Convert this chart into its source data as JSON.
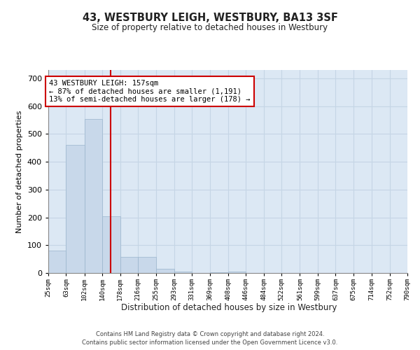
{
  "title": "43, WESTBURY LEIGH, WESTBURY, BA13 3SF",
  "subtitle": "Size of property relative to detached houses in Westbury",
  "xlabel": "Distribution of detached houses by size in Westbury",
  "ylabel": "Number of detached properties",
  "bar_color": "#c8d8ea",
  "bar_edgecolor": "#9ab5cc",
  "grid_color": "#c5d5e5",
  "background_color": "#dce8f4",
  "vline_color": "#cc0000",
  "vline_x": 157,
  "annotation_text": "43 WESTBURY LEIGH: 157sqm\n← 87% of detached houses are smaller (1,191)\n13% of semi-detached houses are larger (178) →",
  "annotation_box_facecolor": "#ffffff",
  "annotation_box_edgecolor": "#cc0000",
  "bin_edges": [
    25,
    63,
    102,
    140,
    178,
    216,
    255,
    293,
    331,
    369,
    408,
    446,
    484,
    522,
    561,
    599,
    637,
    675,
    714,
    752,
    790
  ],
  "bin_labels": [
    "25sqm",
    "63sqm",
    "102sqm",
    "140sqm",
    "178sqm",
    "216sqm",
    "255sqm",
    "293sqm",
    "331sqm",
    "369sqm",
    "408sqm",
    "446sqm",
    "484sqm",
    "522sqm",
    "561sqm",
    "599sqm",
    "637sqm",
    "675sqm",
    "714sqm",
    "752sqm",
    "790sqm"
  ],
  "counts": [
    80,
    460,
    555,
    205,
    57,
    57,
    15,
    5,
    0,
    3,
    5,
    0,
    0,
    0,
    0,
    0,
    0,
    0,
    0,
    0
  ],
  "ylim": [
    0,
    730
  ],
  "yticks": [
    0,
    100,
    200,
    300,
    400,
    500,
    600,
    700
  ],
  "footer_line1": "Contains HM Land Registry data © Crown copyright and database right 2024.",
  "footer_line2": "Contains public sector information licensed under the Open Government Licence v3.0."
}
